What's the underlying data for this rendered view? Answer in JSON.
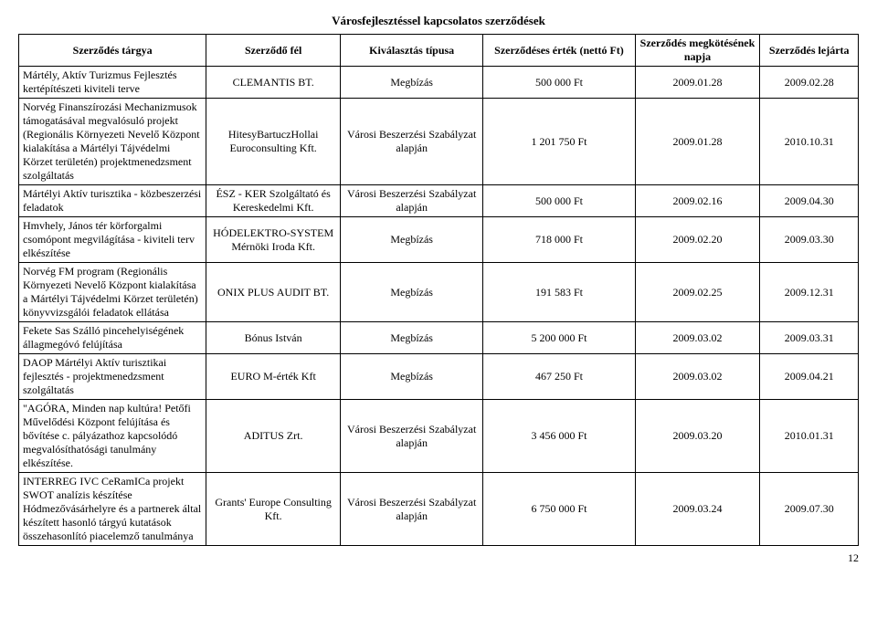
{
  "title": "Városfejlesztéssel kapcsolatos szerződések",
  "pageNumber": "12",
  "columns": {
    "c1": "Szerződés tárgya",
    "c2": "Szerződő fél",
    "c3": "Kiválasztás típusa",
    "c4": "Szerződéses érték (nettó Ft)",
    "c5": "Szerződés megkötésének napja",
    "c6": "Szerződés lejárta"
  },
  "rows": [
    {
      "c1": "Mártély, Aktív Turizmus Fejlesztés kertépítészeti kiviteli terve",
      "c2": "CLEMANTIS BT.",
      "c3": "Megbízás",
      "c4": "500 000 Ft",
      "c5": "2009.01.28",
      "c6": "2009.02.28"
    },
    {
      "c1": "Norvég Finanszírozási Mechanizmusok támogatásával megvalósuló projekt (Regionális Környezeti Nevelő Központ kialakítása a Mártélyi Tájvédelmi Körzet területén) projektmenedzsment szolgáltatás",
      "c2": "HitesyBartuczHollai Euroconsulting Kft.",
      "c3": "Városi Beszerzési Szabályzat alapján",
      "c4": "1 201 750 Ft",
      "c5": "2009.01.28",
      "c6": "2010.10.31"
    },
    {
      "c1": "Mártélyi Aktív turisztika - közbeszerzési feladatok",
      "c2": "ÉSZ - KER Szolgáltató és Kereskedelmi Kft.",
      "c3": "Városi Beszerzési Szabályzat alapján",
      "c4": "500 000 Ft",
      "c5": "2009.02.16",
      "c6": "2009.04.30"
    },
    {
      "c1": "Hmvhely, János tér körforgalmi csomópont megvilágítása - kiviteli terv elkészítése",
      "c2": "HÓDELEKTRO-SYSTEM Mérnöki Iroda Kft.",
      "c3": "Megbízás",
      "c4": "718 000 Ft",
      "c5": "2009.02.20",
      "c6": "2009.03.30"
    },
    {
      "c1": "Norvég FM program (Regionális Környezeti Nevelő Központ kialakítása a Mártélyi Tájvédelmi Körzet területén) könyvvizsgálói feladatok ellátása",
      "c2": "ONIX PLUS AUDIT BT.",
      "c3": "Megbízás",
      "c4": "191 583 Ft",
      "c5": "2009.02.25",
      "c6": "2009.12.31"
    },
    {
      "c1": "Fekete Sas Szálló pincehelyiségének állagmegóvó felújítása",
      "c2": "Bónus István",
      "c3": "Megbízás",
      "c4": "5 200 000 Ft",
      "c5": "2009.03.02",
      "c6": "2009.03.31"
    },
    {
      "c1": "DAOP Mártélyi Aktív turisztikai fejlesztés - projektmenedzsment szolgáltatás",
      "c2": "EURO M-érték Kft",
      "c3": "Megbízás",
      "c4": "467 250 Ft",
      "c5": "2009.03.02",
      "c6": "2009.04.21"
    },
    {
      "c1": "\"AGÓRA, Minden nap kultúra! Petőfi Művelődési Központ felújítása és bővítése c. pályázathoz kapcsolódó megvalósíthatósági tanulmány elkészítése.",
      "c2": "ADITUS Zrt.",
      "c3": "Városi Beszerzési Szabályzat alapján",
      "c4": "3 456 000 Ft",
      "c5": "2009.03.20",
      "c6": "2010.01.31"
    },
    {
      "c1": "INTERREG IVC CeRamICa projekt SWOT analízis készítése Hódmezővásárhelyre és a partnerek által készített hasonló tárgyú kutatások összehasonlító piacelemző tanulmánya",
      "c2": "Grants' Europe Consulting Kft.",
      "c3": "Városi Beszerzési Szabályzat alapján",
      "c4": "6 750 000 Ft",
      "c5": "2009.03.24",
      "c6": "2009.07.30"
    }
  ]
}
